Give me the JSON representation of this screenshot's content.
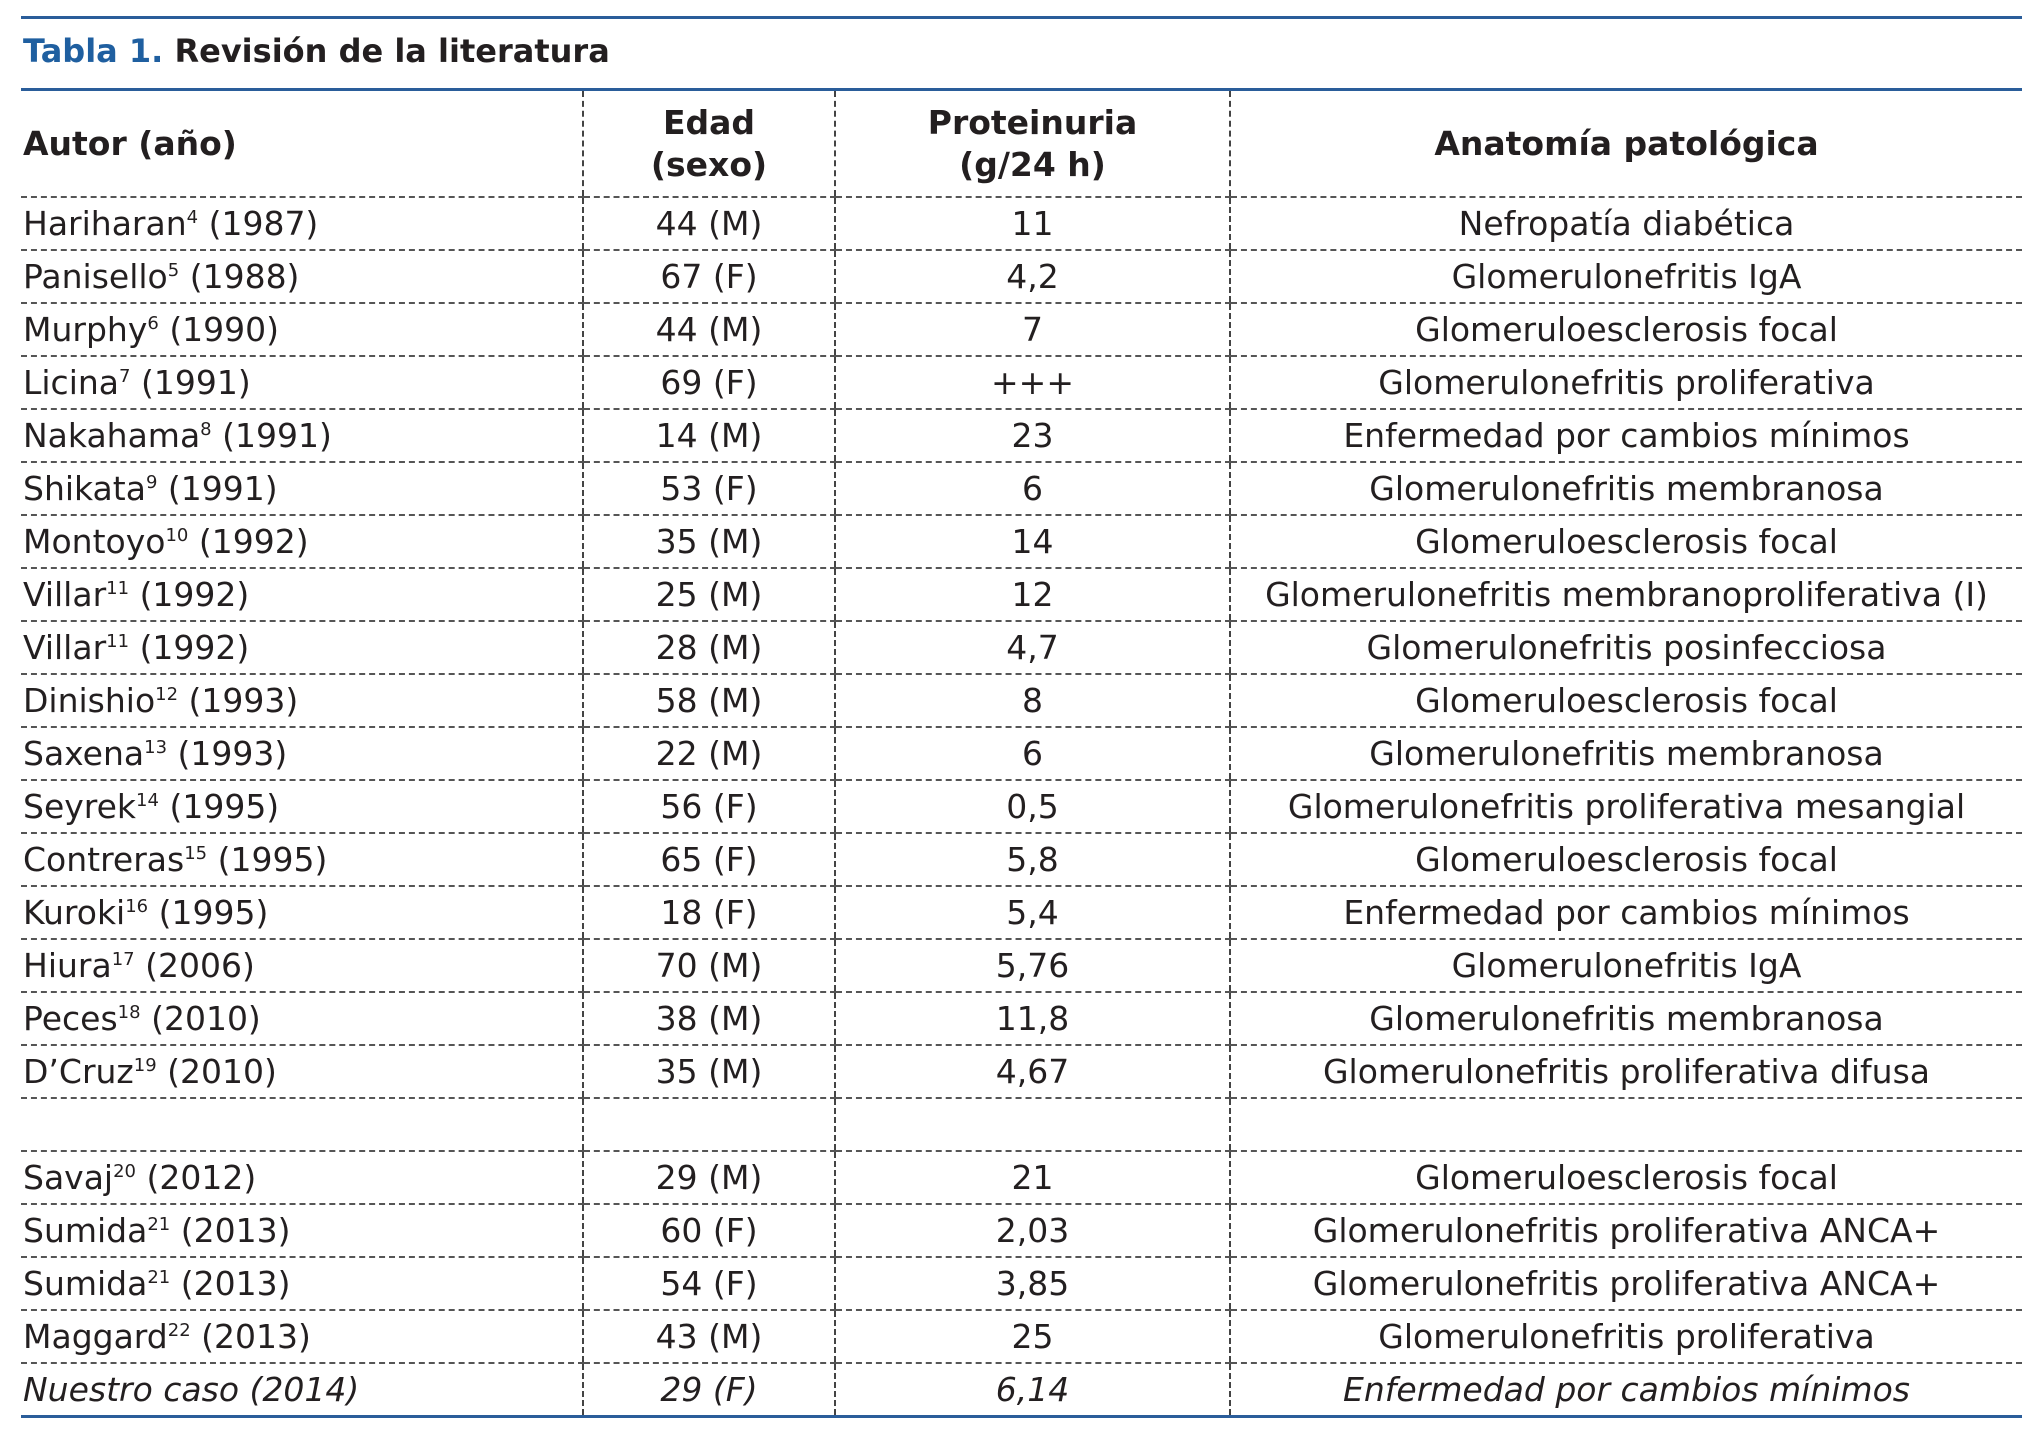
{
  "table": {
    "label": "Tabla 1.",
    "title": "Revisión de la literatura",
    "headers": [
      [
        "Autor (año)"
      ],
      [
        "Edad",
        "(sexo)"
      ],
      [
        "Proteinuria",
        "(g/24 h)"
      ],
      [
        "Anatomía patológica"
      ]
    ],
    "groups": [
      {
        "rows": [
          {
            "author": "Hariharan",
            "ref": "4",
            "year": "(1987)",
            "age": "44 (M)",
            "proteinuria": "11",
            "pathology": "Nefropatía diabética"
          },
          {
            "author": "Panisello",
            "ref": "5",
            "year": "(1988)",
            "age": "67 (F)",
            "proteinuria": "4,2",
            "pathology": "Glomerulonefritis IgA"
          },
          {
            "author": "Murphy",
            "ref": "6",
            "year": "(1990)",
            "age": "44 (M)",
            "proteinuria": "7",
            "pathology": "Glomeruloesclerosis focal"
          },
          {
            "author": "Licina",
            "ref": "7",
            "year": "(1991)",
            "age": "69 (F)",
            "proteinuria": "+++",
            "pathology": "Glomerulonefritis proliferativa"
          },
          {
            "author": "Nakahama",
            "ref": "8",
            "year": "(1991)",
            "age": "14 (M)",
            "proteinuria": "23",
            "pathology": "Enfermedad por cambios mínimos"
          },
          {
            "author": "Shikata",
            "ref": "9",
            "year": "(1991)",
            "age": "53 (F)",
            "proteinuria": "6",
            "pathology": "Glomerulonefritis membranosa"
          },
          {
            "author": "Montoyo",
            "ref": "10",
            "year": "(1992)",
            "age": "35 (M)",
            "proteinuria": "14",
            "pathology": "Glomeruloesclerosis focal"
          },
          {
            "author": "Villar",
            "ref": "11",
            "year": "(1992)",
            "age": "25 (M)",
            "proteinuria": "12",
            "pathology": "Glomerulonefritis membranoproliferativa (I)"
          },
          {
            "author": "Villar",
            "ref": "11",
            "year": "(1992)",
            "age": "28 (M)",
            "proteinuria": "4,7",
            "pathology": "Glomerulonefritis posinfecciosa"
          },
          {
            "author": "Dinishio",
            "ref": "12",
            "year": "(1993)",
            "age": "58 (M)",
            "proteinuria": "8",
            "pathology": "Glomeruloesclerosis focal"
          },
          {
            "author": "Saxena",
            "ref": "13",
            "year": "(1993)",
            "age": "22 (M)",
            "proteinuria": "6",
            "pathology": "Glomerulonefritis membranosa"
          },
          {
            "author": "Seyrek",
            "ref": "14",
            "year": "(1995)",
            "age": "56 (F)",
            "proteinuria": "0,5",
            "pathology": "Glomerulonefritis proliferativa mesangial"
          },
          {
            "author": "Contreras",
            "ref": "15",
            "year": "(1995)",
            "age": "65 (F)",
            "proteinuria": "5,8",
            "pathology": "Glomeruloesclerosis focal"
          },
          {
            "author": "Kuroki",
            "ref": "16",
            "year": "(1995)",
            "age": "18 (F)",
            "proteinuria": "5,4",
            "pathology": "Enfermedad por cambios mínimos"
          },
          {
            "author": "Hiura",
            "ref": "17",
            "year": "(2006)",
            "age": "70 (M)",
            "proteinuria": "5,76",
            "pathology": "Glomerulonefritis IgA"
          },
          {
            "author": "Peces",
            "ref": "18",
            "year": "(2010)",
            "age": "38 (M)",
            "proteinuria": "11,8",
            "pathology": "Glomerulonefritis membranosa"
          },
          {
            "author": "D’Cruz",
            "ref": "19",
            "year": "(2010)",
            "age": "35 (M)",
            "proteinuria": "4,67",
            "pathology": "Glomerulonefritis proliferativa difusa"
          }
        ]
      },
      {
        "rows": [
          {
            "author": "Savaj",
            "ref": "20",
            "year": "(2012)",
            "age": "29 (M)",
            "proteinuria": "21",
            "pathology": "Glomeruloesclerosis focal"
          },
          {
            "author": "Sumida",
            "ref": "21",
            "year": "(2013)",
            "age": "60 (F)",
            "proteinuria": "2,03",
            "pathology": "Glomerulonefritis proliferativa ANCA+"
          },
          {
            "author": "Sumida",
            "ref": "21",
            "year": "(2013)",
            "age": "54 (F)",
            "proteinuria": "3,85",
            "pathology": "Glomerulonefritis proliferativa ANCA+"
          },
          {
            "author": "Maggard",
            "ref": "22",
            "year": "(2013)",
            "age": "43 (M)",
            "proteinuria": "25",
            "pathology": "Glomerulonefritis proliferativa"
          }
        ]
      }
    ],
    "own_case": [
      "Nuestro caso (2014)",
      "29 (F)",
      "6,14",
      "Enfermedad por cambios mínimos"
    ]
  }
}
